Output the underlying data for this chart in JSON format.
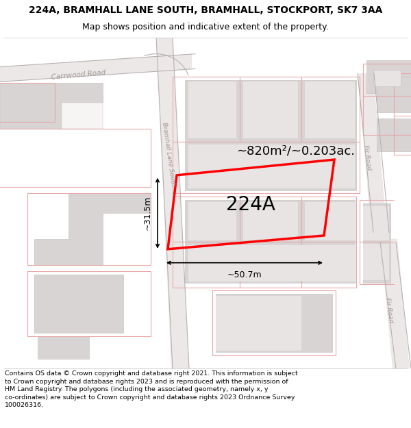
{
  "title_line1": "224A, BRAMHALL LANE SOUTH, BRAMHALL, STOCKPORT, SK7 3AA",
  "title_line2": "Map shows position and indicative extent of the property.",
  "footer_text": "Contains OS data © Crown copyright and database right 2021. This information is subject\nto Crown copyright and database rights 2023 and is reproduced with the permission of\nHM Land Registry. The polygons (including the associated geometry, namely x, y\nco-ordinates) are subject to Crown copyright and database rights 2023 Ordnance Survey\n100026316.",
  "label_area": "~820m²/~0.203ac.",
  "label_plot": "224A",
  "label_width": "~50.7m",
  "label_height": "~31.5m",
  "map_bg": "#f7f4f4",
  "building_color": "#d8d4d4",
  "building_edge": "#c8c4c4",
  "road_fill": "#ede8e8",
  "pink_line": "#e8a8a8",
  "gray_line": "#b8b0b0",
  "highlight_color": "#ff0000",
  "road_label_color": "#a09898",
  "title_fontsize": 10,
  "subtitle_fontsize": 9,
  "footer_fontsize": 6.8,
  "dim_label_fontsize": 9,
  "area_label_fontsize": 13,
  "plot_label_fontsize": 20
}
